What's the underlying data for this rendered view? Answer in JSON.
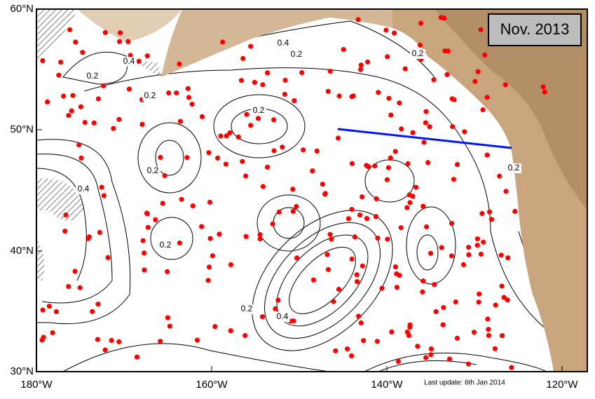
{
  "map": {
    "title": "Nov. 2013",
    "footer": "Last update: 6th Jan 2014",
    "lat_labels": [
      "60°N",
      "50°N",
      "40°N",
      "30°N"
    ],
    "lon_labels": [
      "180°W",
      "160°W",
      "140°W",
      "120°W"
    ],
    "contour_labels": [
      "0.2",
      "0.2",
      "0.2",
      "0.2",
      "0.2",
      "0.2",
      "0.2",
      "0.4",
      "0.4",
      "0.4",
      "0.4",
      "0.2",
      "0.2"
    ]
  }
}
